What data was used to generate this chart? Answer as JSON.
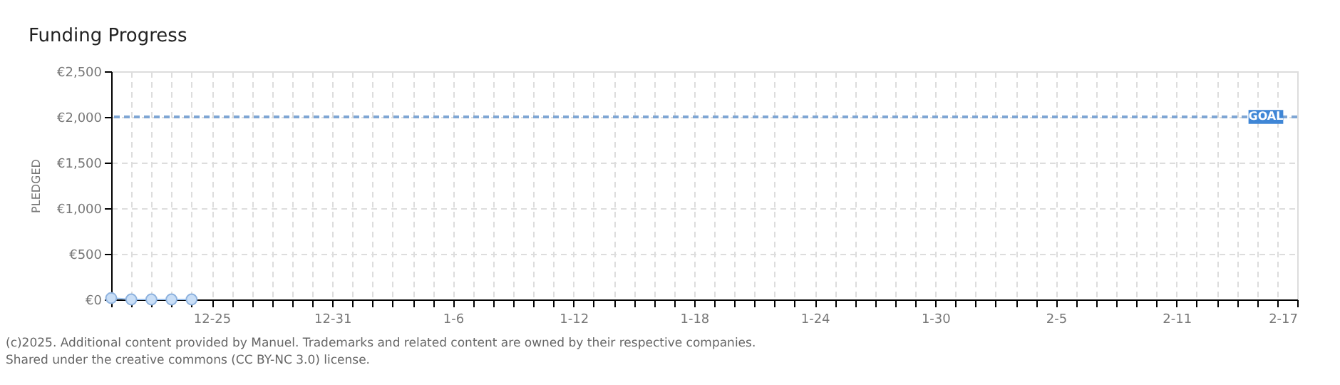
{
  "chart_data": {
    "type": "line",
    "title": "Funding Progress",
    "ylabel": "PLEDGED",
    "x": [
      "2024-12-20",
      "2024-12-21",
      "2024-12-22",
      "2024-12-23",
      "2024-12-24"
    ],
    "series": [
      {
        "color": "#9cc0ea",
        "values": [
          15,
          0,
          0,
          0,
          0
        ]
      }
    ],
    "marker": "circle",
    "grid": true,
    "xlim": [
      "2024-12-20",
      "2025-02-17"
    ],
    "xticks": [
      {
        "value": "2024-12-20",
        "label": null
      },
      {
        "value": "2024-12-21",
        "label": null
      },
      {
        "value": "2024-12-22",
        "label": null
      },
      {
        "value": "2024-12-23",
        "label": null
      },
      {
        "value": "2024-12-24",
        "label": null
      },
      {
        "value": "2024-12-25",
        "label": "12-25"
      },
      {
        "value": "2024-12-26",
        "label": null
      },
      {
        "value": "2024-12-27",
        "label": null
      },
      {
        "value": "2024-12-28",
        "label": null
      },
      {
        "value": "2024-12-29",
        "label": null
      },
      {
        "value": "2024-12-30",
        "label": null
      },
      {
        "value": "2024-12-31",
        "label": "12-31"
      },
      {
        "value": "2025-01-01",
        "label": null
      },
      {
        "value": "2025-01-02",
        "label": null
      },
      {
        "value": "2025-01-03",
        "label": null
      },
      {
        "value": "2025-01-04",
        "label": null
      },
      {
        "value": "2025-01-05",
        "label": null
      },
      {
        "value": "2025-01-06",
        "label": "1-6"
      },
      {
        "value": "2025-01-07",
        "label": null
      },
      {
        "value": "2025-01-08",
        "label": null
      },
      {
        "value": "2025-01-09",
        "label": null
      },
      {
        "value": "2025-01-10",
        "label": null
      },
      {
        "value": "2025-01-11",
        "label": null
      },
      {
        "value": "2025-01-12",
        "label": "1-12"
      },
      {
        "value": "2025-01-13",
        "label": null
      },
      {
        "value": "2025-01-14",
        "label": null
      },
      {
        "value": "2025-01-15",
        "label": null
      },
      {
        "value": "2025-01-16",
        "label": null
      },
      {
        "value": "2025-01-17",
        "label": null
      },
      {
        "value": "2025-01-18",
        "label": "1-18"
      },
      {
        "value": "2025-01-19",
        "label": null
      },
      {
        "value": "2025-01-20",
        "label": null
      },
      {
        "value": "2025-01-21",
        "label": null
      },
      {
        "value": "2025-01-22",
        "label": null
      },
      {
        "value": "2025-01-23",
        "label": null
      },
      {
        "value": "2025-01-24",
        "label": "1-24"
      },
      {
        "value": "2025-01-25",
        "label": null
      },
      {
        "value": "2025-01-26",
        "label": null
      },
      {
        "value": "2025-01-27",
        "label": null
      },
      {
        "value": "2025-01-28",
        "label": null
      },
      {
        "value": "2025-01-29",
        "label": null
      },
      {
        "value": "2025-01-30",
        "label": "1-30"
      },
      {
        "value": "2025-01-31",
        "label": null
      },
      {
        "value": "2025-02-01",
        "label": null
      },
      {
        "value": "2025-02-02",
        "label": null
      },
      {
        "value": "2025-02-03",
        "label": null
      },
      {
        "value": "2025-02-04",
        "label": null
      },
      {
        "value": "2025-02-05",
        "label": "2-5"
      },
      {
        "value": "2025-02-06",
        "label": null
      },
      {
        "value": "2025-02-07",
        "label": null
      },
      {
        "value": "2025-02-08",
        "label": null
      },
      {
        "value": "2025-02-09",
        "label": null
      },
      {
        "value": "2025-02-10",
        "label": null
      },
      {
        "value": "2025-02-11",
        "label": "2-11"
      },
      {
        "value": "2025-02-12",
        "label": null
      },
      {
        "value": "2025-02-13",
        "label": null
      },
      {
        "value": "2025-02-14",
        "label": null
      },
      {
        "value": "2025-02-15",
        "label": null
      },
      {
        "value": "2025-02-16",
        "label": null
      },
      {
        "value": "2025-02-17",
        "label": "2-17"
      }
    ],
    "ylim": [
      0,
      2500
    ],
    "yticks": [
      {
        "value": 0,
        "label": "€0"
      },
      {
        "value": 500,
        "label": "€500"
      },
      {
        "value": 1000,
        "label": "€1,000"
      },
      {
        "value": 1500,
        "label": "€1,500"
      },
      {
        "value": 2000,
        "label": "€2,000"
      },
      {
        "value": 2500,
        "label": "€2,500"
      }
    ],
    "ref_lines": [
      {
        "axis": "y",
        "value": 2000,
        "label": "GOAL",
        "color": "#7fa6d4",
        "line_style": "dashed"
      }
    ],
    "annotations": [
      "(c)2025. Additional content provided by Manuel. Trademarks and related content are owned by their respective companies.",
      "Shared under the creative commons (CC BY-NC 3.0) license."
    ]
  }
}
